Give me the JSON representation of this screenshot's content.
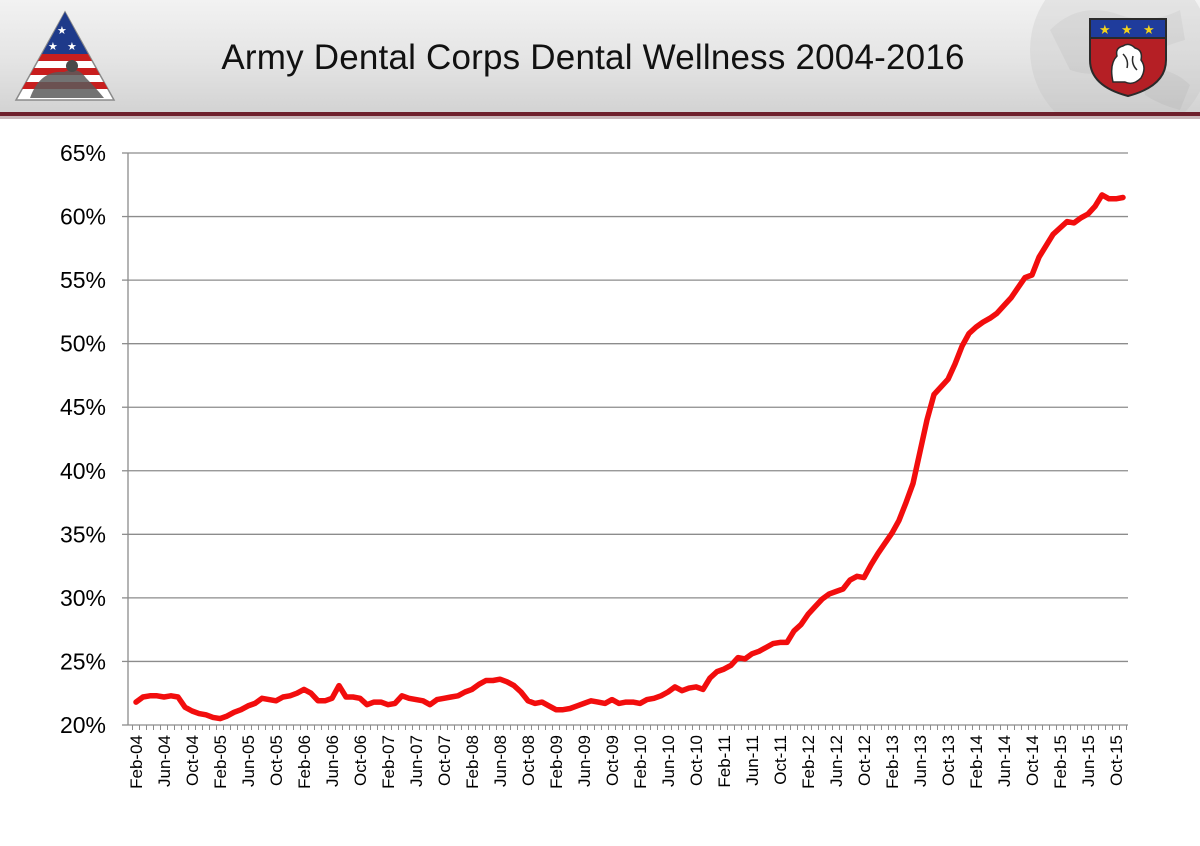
{
  "page": {
    "title": "Army Dental Corps Dental Wellness 2004-2016"
  },
  "colors": {
    "line": "#f20d0d",
    "grid": "#8c8c8c",
    "header_rule": "#6e1f2b"
  },
  "logos": {
    "left": "army-medicine-flag-logo",
    "right": "dental-corps-shield-crest"
  },
  "chart_data": {
    "type": "line",
    "title": "Army Dental Corps Dental Wellness 2004-2016",
    "xlabel": "",
    "ylabel": "",
    "grid": true,
    "legend": "none",
    "ylim": [
      20,
      65
    ],
    "yticks": [
      20,
      25,
      30,
      35,
      40,
      45,
      50,
      55,
      60,
      65
    ],
    "ytick_labels": [
      "20%",
      "25%",
      "30%",
      "35%",
      "40%",
      "45%",
      "50%",
      "55%",
      "60%",
      "65%"
    ],
    "xtick_labels": [
      "Feb-04",
      "Jun-04",
      "Oct-04",
      "Feb-05",
      "Jun-05",
      "Oct-05",
      "Feb-06",
      "Jun-06",
      "Oct-06",
      "Feb-07",
      "Jun-07",
      "Oct-07",
      "Feb-08",
      "Jun-08",
      "Oct-08",
      "Feb-09",
      "Jun-09",
      "Oct-09",
      "Feb-10",
      "Jun-10",
      "Oct-10",
      "Feb-11",
      "Jun-11",
      "Oct-11",
      "Feb-12",
      "Jun-12",
      "Oct-12",
      "Feb-13",
      "Jun-13",
      "Oct-13",
      "Feb-14",
      "Jun-14",
      "Oct-14",
      "Feb-15",
      "Jun-15",
      "Oct-15"
    ],
    "x_start": "Feb-04",
    "x_step_months": 1,
    "tick_every_months": 4,
    "series": [
      {
        "name": "Dental Wellness",
        "values": [
          21.8,
          22.2,
          22.3,
          22.3,
          22.2,
          22.3,
          22.2,
          21.4,
          21.1,
          20.9,
          20.8,
          20.6,
          20.5,
          20.7,
          21.0,
          21.2,
          21.5,
          21.7,
          22.1,
          22.0,
          21.9,
          22.2,
          22.3,
          22.5,
          22.8,
          22.5,
          21.9,
          21.9,
          22.1,
          23.1,
          22.2,
          22.2,
          22.1,
          21.6,
          21.8,
          21.8,
          21.6,
          21.7,
          22.3,
          22.1,
          22.0,
          21.9,
          21.6,
          22.0,
          22.1,
          22.2,
          22.3,
          22.6,
          22.8,
          23.2,
          23.5,
          23.5,
          23.6,
          23.4,
          23.1,
          22.6,
          21.9,
          21.7,
          21.8,
          21.5,
          21.2,
          21.2,
          21.3,
          21.5,
          21.7,
          21.9,
          21.8,
          21.7,
          22.0,
          21.7,
          21.8,
          21.8,
          21.7,
          22.0,
          22.1,
          22.3,
          22.6,
          23.0,
          22.7,
          22.9,
          23.0,
          22.8,
          23.7,
          24.2,
          24.4,
          24.7,
          25.3,
          25.2,
          25.6,
          25.8,
          26.1,
          26.4,
          26.5,
          26.5,
          27.4,
          27.9,
          28.7,
          29.3,
          29.9,
          30.3,
          30.5,
          30.7,
          31.4,
          31.7,
          31.6,
          32.6,
          33.5,
          34.3,
          35.1,
          36.1,
          37.5,
          39.0,
          41.5,
          44.0,
          46.0,
          46.6,
          47.2,
          48.4,
          49.8,
          50.8,
          51.3,
          51.7,
          52.0,
          52.4,
          53.0,
          53.6,
          54.4,
          55.2,
          55.4,
          56.8,
          57.7,
          58.6,
          59.1,
          59.6,
          59.5,
          59.9,
          60.2,
          60.8,
          61.7,
          61.4,
          61.4,
          61.5
        ]
      }
    ]
  }
}
